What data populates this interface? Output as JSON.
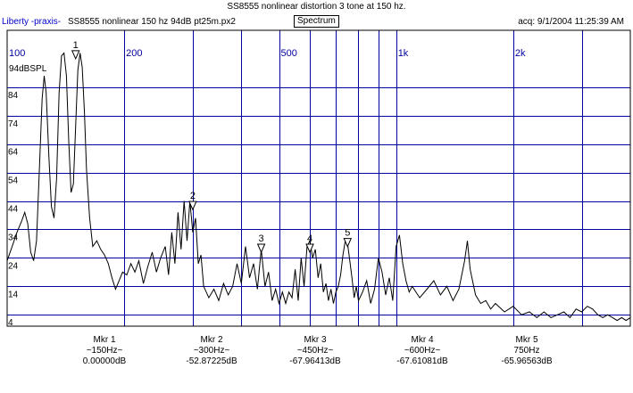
{
  "header": {
    "title": "SS8555 nonlinear distortion 3 tone at 150 hz.",
    "app_name": "Liberty -praxis-",
    "file_name": "SS8555 nonlinear 150 hz 94dB pt25m.px2",
    "mode_button": "Spectrum",
    "acq_time": "acq: 9/1/2004 11:25:39 AM"
  },
  "chart_data": {
    "type": "line",
    "title": "SS8555 nonlinear distortion 3 tone at 150 hz.",
    "x_scale": "log",
    "xlim": [
      100,
      4000
    ],
    "ylim": [
      0,
      104
    ],
    "y_unit_label": "94dBSPL",
    "x_tick_labels": [
      {
        "value": 100,
        "label": "100"
      },
      {
        "value": 200,
        "label": "200"
      },
      {
        "value": 500,
        "label": "500"
      },
      {
        "value": 1000,
        "label": "1k"
      },
      {
        "value": 2000,
        "label": "2k"
      }
    ],
    "y_tick_labels": [
      {
        "value": 84,
        "label": "84"
      },
      {
        "value": 74,
        "label": "74"
      },
      {
        "value": 64,
        "label": "64"
      },
      {
        "value": 54,
        "label": "54"
      },
      {
        "value": 44,
        "label": "44"
      },
      {
        "value": 34,
        "label": "34"
      },
      {
        "value": 24,
        "label": "24"
      },
      {
        "value": 14,
        "label": "14"
      },
      {
        "value": 4,
        "label": "4"
      }
    ],
    "grid": true,
    "series": [
      {
        "color": "#000000",
        "points": [
          [
            100,
            23
          ],
          [
            103,
            28
          ],
          [
            106,
            33
          ],
          [
            109,
            37
          ],
          [
            111,
            40
          ],
          [
            113,
            36
          ],
          [
            115,
            26
          ],
          [
            117,
            23
          ],
          [
            119,
            30
          ],
          [
            121,
            55
          ],
          [
            123,
            80
          ],
          [
            124.5,
            88
          ],
          [
            126,
            82
          ],
          [
            128,
            60
          ],
          [
            130,
            42
          ],
          [
            132,
            38
          ],
          [
            134,
            52
          ],
          [
            136,
            82
          ],
          [
            138,
            95
          ],
          [
            140,
            96
          ],
          [
            142,
            88
          ],
          [
            144,
            65
          ],
          [
            146,
            47
          ],
          [
            148,
            50
          ],
          [
            150,
            70
          ],
          [
            152,
            90
          ],
          [
            154,
            96
          ],
          [
            156,
            91
          ],
          [
            158,
            75
          ],
          [
            160,
            55
          ],
          [
            163,
            38
          ],
          [
            166,
            28
          ],
          [
            170,
            30
          ],
          [
            174,
            27
          ],
          [
            178,
            25
          ],
          [
            182,
            22
          ],
          [
            186,
            17
          ],
          [
            190,
            13
          ],
          [
            194,
            16
          ],
          [
            198,
            19
          ],
          [
            203,
            18
          ],
          [
            208,
            22
          ],
          [
            213,
            19
          ],
          [
            218,
            23
          ],
          [
            224,
            15
          ],
          [
            230,
            21
          ],
          [
            236,
            26
          ],
          [
            242,
            19
          ],
          [
            248,
            24
          ],
          [
            255,
            28
          ],
          [
            260,
            18
          ],
          [
            265,
            33
          ],
          [
            270,
            22
          ],
          [
            275,
            40
          ],
          [
            280,
            27
          ],
          [
            285,
            44
          ],
          [
            290,
            30
          ],
          [
            295,
            44
          ],
          [
            300,
            33
          ],
          [
            305,
            38
          ],
          [
            310,
            22
          ],
          [
            315,
            25
          ],
          [
            320,
            14
          ],
          [
            330,
            10
          ],
          [
            340,
            13
          ],
          [
            350,
            9
          ],
          [
            360,
            15
          ],
          [
            370,
            11
          ],
          [
            380,
            14
          ],
          [
            390,
            22
          ],
          [
            400,
            15
          ],
          [
            410,
            28
          ],
          [
            420,
            17
          ],
          [
            430,
            22
          ],
          [
            440,
            13
          ],
          [
            450,
            27
          ],
          [
            460,
            14
          ],
          [
            470,
            19
          ],
          [
            480,
            9
          ],
          [
            490,
            13
          ],
          [
            500,
            8
          ],
          [
            510,
            12
          ],
          [
            520,
            8
          ],
          [
            530,
            12
          ],
          [
            540,
            10
          ],
          [
            550,
            20
          ],
          [
            560,
            9
          ],
          [
            570,
            24
          ],
          [
            580,
            14
          ],
          [
            590,
            28
          ],
          [
            600,
            30
          ],
          [
            610,
            24
          ],
          [
            620,
            27
          ],
          [
            630,
            17
          ],
          [
            640,
            22
          ],
          [
            650,
            12
          ],
          [
            660,
            15
          ],
          [
            670,
            9
          ],
          [
            680,
            13
          ],
          [
            690,
            8
          ],
          [
            700,
            12
          ],
          [
            710,
            14
          ],
          [
            720,
            18
          ],
          [
            730,
            25
          ],
          [
            740,
            30
          ],
          [
            750,
            29
          ],
          [
            760,
            23
          ],
          [
            770,
            17
          ],
          [
            780,
            10
          ],
          [
            790,
            14
          ],
          [
            800,
            9
          ],
          [
            820,
            12
          ],
          [
            840,
            16
          ],
          [
            860,
            8
          ],
          [
            880,
            13
          ],
          [
            900,
            24
          ],
          [
            920,
            19
          ],
          [
            940,
            11
          ],
          [
            960,
            17
          ],
          [
            980,
            9
          ],
          [
            1000,
            28
          ],
          [
            1020,
            32
          ],
          [
            1040,
            22
          ],
          [
            1060,
            16
          ],
          [
            1080,
            12
          ],
          [
            1100,
            14
          ],
          [
            1150,
            10
          ],
          [
            1200,
            13
          ],
          [
            1250,
            16
          ],
          [
            1300,
            11
          ],
          [
            1350,
            14
          ],
          [
            1400,
            9
          ],
          [
            1450,
            13
          ],
          [
            1500,
            23
          ],
          [
            1525,
            30
          ],
          [
            1550,
            20
          ],
          [
            1600,
            11
          ],
          [
            1650,
            8
          ],
          [
            1700,
            9
          ],
          [
            1750,
            6
          ],
          [
            1800,
            8
          ],
          [
            1900,
            5
          ],
          [
            2000,
            7
          ],
          [
            2100,
            4
          ],
          [
            2200,
            5
          ],
          [
            2300,
            3
          ],
          [
            2400,
            5
          ],
          [
            2500,
            3
          ],
          [
            2600,
            4
          ],
          [
            2700,
            5
          ],
          [
            2800,
            3
          ],
          [
            2900,
            6
          ],
          [
            3000,
            5
          ],
          [
            3100,
            7
          ],
          [
            3200,
            6
          ],
          [
            3300,
            4
          ],
          [
            3400,
            3
          ],
          [
            3500,
            4
          ],
          [
            3600,
            3
          ],
          [
            3700,
            2
          ],
          [
            3800,
            3
          ],
          [
            3900,
            2
          ],
          [
            4000,
            3
          ]
        ]
      }
    ],
    "markers": [
      {
        "label": "1",
        "x": 150,
        "y": 94
      },
      {
        "label": "2",
        "x": 300,
        "y": 41
      },
      {
        "label": "3",
        "x": 450,
        "y": 26
      },
      {
        "label": "4",
        "x": 600,
        "y": 26
      },
      {
        "label": "5",
        "x": 750,
        "y": 28
      }
    ],
    "marker_readouts": [
      {
        "name": "Mkr 1",
        "freq": "~150Hz~",
        "level": "0.00000dB"
      },
      {
        "name": "Mkr 2",
        "freq": "~300Hz~",
        "level": "-52.87225dB"
      },
      {
        "name": "Mkr 3",
        "freq": "~450Hz~",
        "level": "-67.96413dB"
      },
      {
        "name": "Mkr 4",
        "freq": "~600Hz~",
        "level": "-67.61081dB"
      },
      {
        "name": "Mkr 5",
        "freq": "750Hz",
        "level": "-65.96563dB"
      }
    ]
  }
}
